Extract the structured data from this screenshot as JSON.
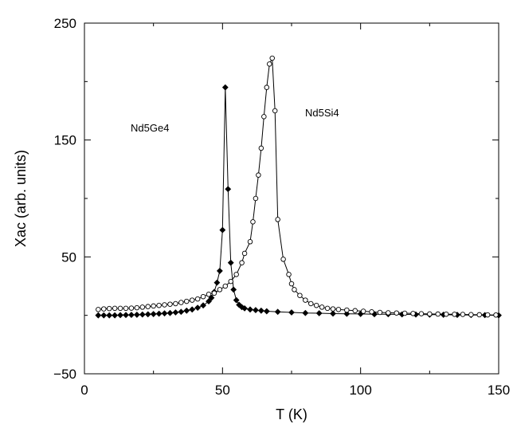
{
  "chart_data": {
    "type": "scatter",
    "xlabel": "T (K)",
    "ylabel": "Xac (arb. units)",
    "xlim": [
      0,
      150
    ],
    "ylim": [
      -50,
      250
    ],
    "xticks": [
      "0",
      "50",
      "100",
      "150"
    ],
    "yticks": [
      "250",
      "150",
      "50",
      "−50"
    ],
    "grid": false,
    "annotations": [
      {
        "text": "Nd5Ge4",
        "x": 30,
        "y": 160
      },
      {
        "text": "Nd5Si4",
        "x": 85,
        "y": 185
      }
    ],
    "series": [
      {
        "name": "Nd5Ge4",
        "marker": "filled-diamond",
        "color": "#000000",
        "x": [
          5,
          7,
          9,
          11,
          13,
          15,
          17,
          19,
          21,
          23,
          25,
          27,
          29,
          31,
          33,
          35,
          37,
          39,
          41,
          43,
          45,
          46,
          47,
          48,
          49,
          50,
          51,
          52,
          53,
          54,
          55,
          56,
          57,
          58,
          60,
          62,
          64,
          66,
          70,
          75,
          80,
          85,
          90,
          95,
          100,
          105,
          110,
          115,
          120,
          125,
          130,
          135,
          140,
          145,
          150
        ],
        "y": [
          0,
          0,
          0,
          0,
          0.2,
          0.3,
          0.4,
          0.5,
          0.7,
          0.9,
          1.1,
          1.4,
          1.7,
          2,
          2.5,
          3,
          4,
          5,
          6.5,
          8.5,
          12,
          15,
          20,
          28,
          38,
          73,
          195,
          108,
          45,
          22,
          13,
          9,
          7,
          6,
          5,
          4.5,
          4,
          3.5,
          3,
          2.5,
          2,
          1.8,
          1.5,
          1.3,
          1.2,
          1,
          1,
          0.8,
          0.7,
          0.6,
          0.5,
          0.4,
          0.3,
          0.2,
          0
        ]
      },
      {
        "name": "Nd5Si4",
        "marker": "open-circle",
        "color": "#000000",
        "x": [
          5,
          7,
          9,
          11,
          13,
          15,
          17,
          19,
          21,
          23,
          25,
          27,
          29,
          31,
          33,
          35,
          37,
          39,
          41,
          43,
          45,
          47,
          49,
          51,
          53,
          55,
          57,
          58,
          60,
          61,
          62,
          63,
          64,
          65,
          66,
          67,
          68,
          69,
          70,
          72,
          74,
          75,
          76,
          78,
          80,
          82,
          84,
          86,
          88,
          90,
          92,
          95,
          98,
          101,
          104,
          107,
          110,
          113,
          116,
          119,
          122,
          125,
          128,
          131,
          134,
          137,
          140,
          143,
          146,
          149
        ],
        "y": [
          5,
          5.5,
          5.8,
          6,
          6,
          6,
          6.2,
          6.5,
          7,
          7.5,
          8,
          8.5,
          9,
          9.5,
          10,
          11,
          12,
          13,
          14,
          16,
          18,
          19,
          22,
          25,
          29,
          35,
          45,
          53,
          63,
          80,
          100,
          120,
          143,
          170,
          195,
          215,
          220,
          175,
          82,
          48,
          35,
          27,
          22,
          17,
          13,
          10,
          8.5,
          7,
          6,
          5.5,
          5,
          4.5,
          4,
          3.5,
          3,
          2.5,
          2.2,
          2,
          1.8,
          1.6,
          1.4,
          1.2,
          1.1,
          1,
          0.9,
          0.8,
          0.6,
          0.5,
          0.4,
          0.3
        ]
      }
    ]
  }
}
